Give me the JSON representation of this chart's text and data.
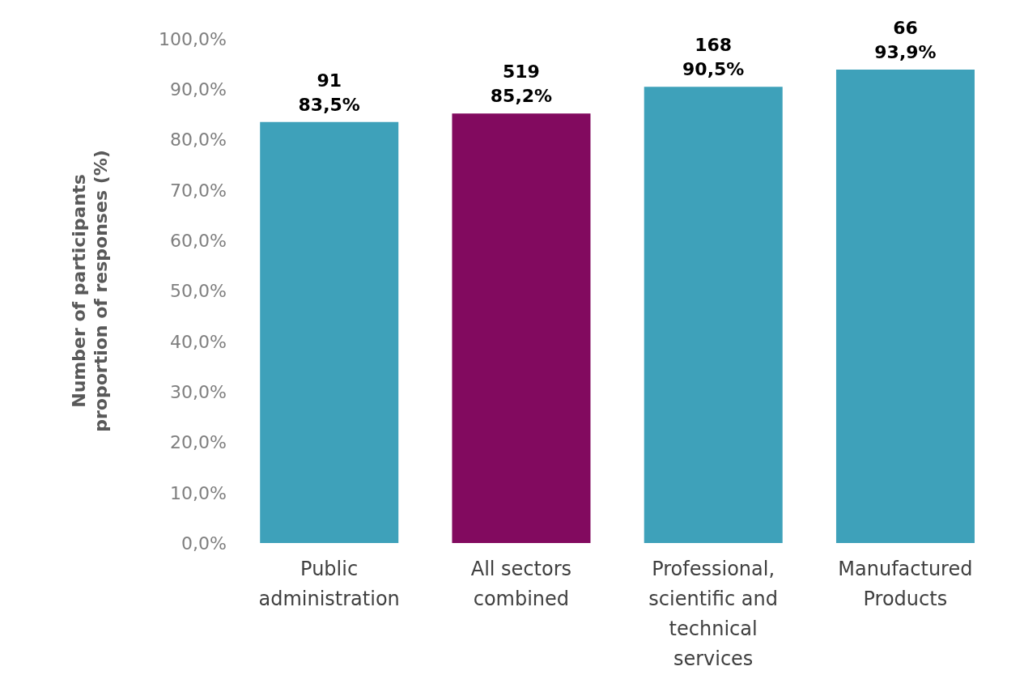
{
  "chart_data": {
    "type": "bar",
    "ylabel": "Number of participants\nproportion of responses (%)",
    "categories": [
      "Public administration",
      "All sectors combined",
      "Professional, scientific and technical services",
      "Manufactured Products"
    ],
    "values": [
      83.5,
      85.2,
      90.5,
      93.9
    ],
    "colors": [
      "#3ea1ba",
      "#820a5f",
      "#3ea1ba",
      "#3ea1ba"
    ],
    "value_labels": [
      "91\n83,5%",
      "519\n85,2%",
      "168\n90,5%",
      "66\n93,9%"
    ],
    "ylim": [
      0,
      100
    ],
    "yticks": [
      {
        "value": 0,
        "label": "0,0%"
      },
      {
        "value": 10,
        "label": "10,0%"
      },
      {
        "value": 20,
        "label": "20,0%"
      },
      {
        "value": 30,
        "label": "30,0%"
      },
      {
        "value": 40,
        "label": "40,0%"
      },
      {
        "value": 50,
        "label": "50,0%"
      },
      {
        "value": 60,
        "label": "60,0%"
      },
      {
        "value": 70,
        "label": "70,0%"
      },
      {
        "value": 80,
        "label": "80,0%"
      },
      {
        "value": 90,
        "label": "90,0%"
      },
      {
        "value": 100,
        "label": "100,0%"
      }
    ],
    "grid": false,
    "legend": false
  }
}
